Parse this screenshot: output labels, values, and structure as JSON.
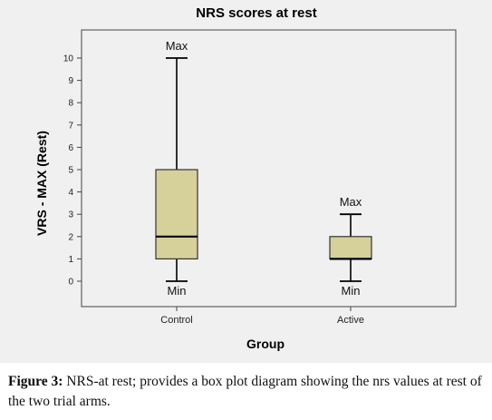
{
  "chart_data": {
    "type": "box",
    "title": "NRS scores at rest",
    "xlabel": "Group",
    "ylabel": "VRS - MAX (Rest)",
    "ylim": [
      -0.5,
      11
    ],
    "yticks": [
      0,
      1,
      2,
      3,
      4,
      5,
      6,
      7,
      8,
      9,
      10
    ],
    "categories": [
      "Control",
      "Active"
    ],
    "boxes": [
      {
        "category": "Control",
        "min": 0,
        "q1": 1,
        "median": 2,
        "q3": 5,
        "max": 10
      },
      {
        "category": "Active",
        "min": 0,
        "q1": 1,
        "median": 1,
        "q3": 2,
        "max": 3
      }
    ],
    "annotations": [
      {
        "category": "Control",
        "at": "max",
        "text": "Max"
      },
      {
        "category": "Control",
        "at": "min",
        "text": "Min"
      },
      {
        "category": "Active",
        "at": "max",
        "text": "Max"
      },
      {
        "category": "Active",
        "at": "min",
        "text": "Min"
      }
    ],
    "grid": false,
    "box_color": "#d6d19a",
    "background_color": "#f0f0f0"
  },
  "caption": {
    "label": "Figure 3:",
    "text": " NRS-at rest; provides a box plot diagram showing the nrs values at rest of the two trial arms."
  }
}
